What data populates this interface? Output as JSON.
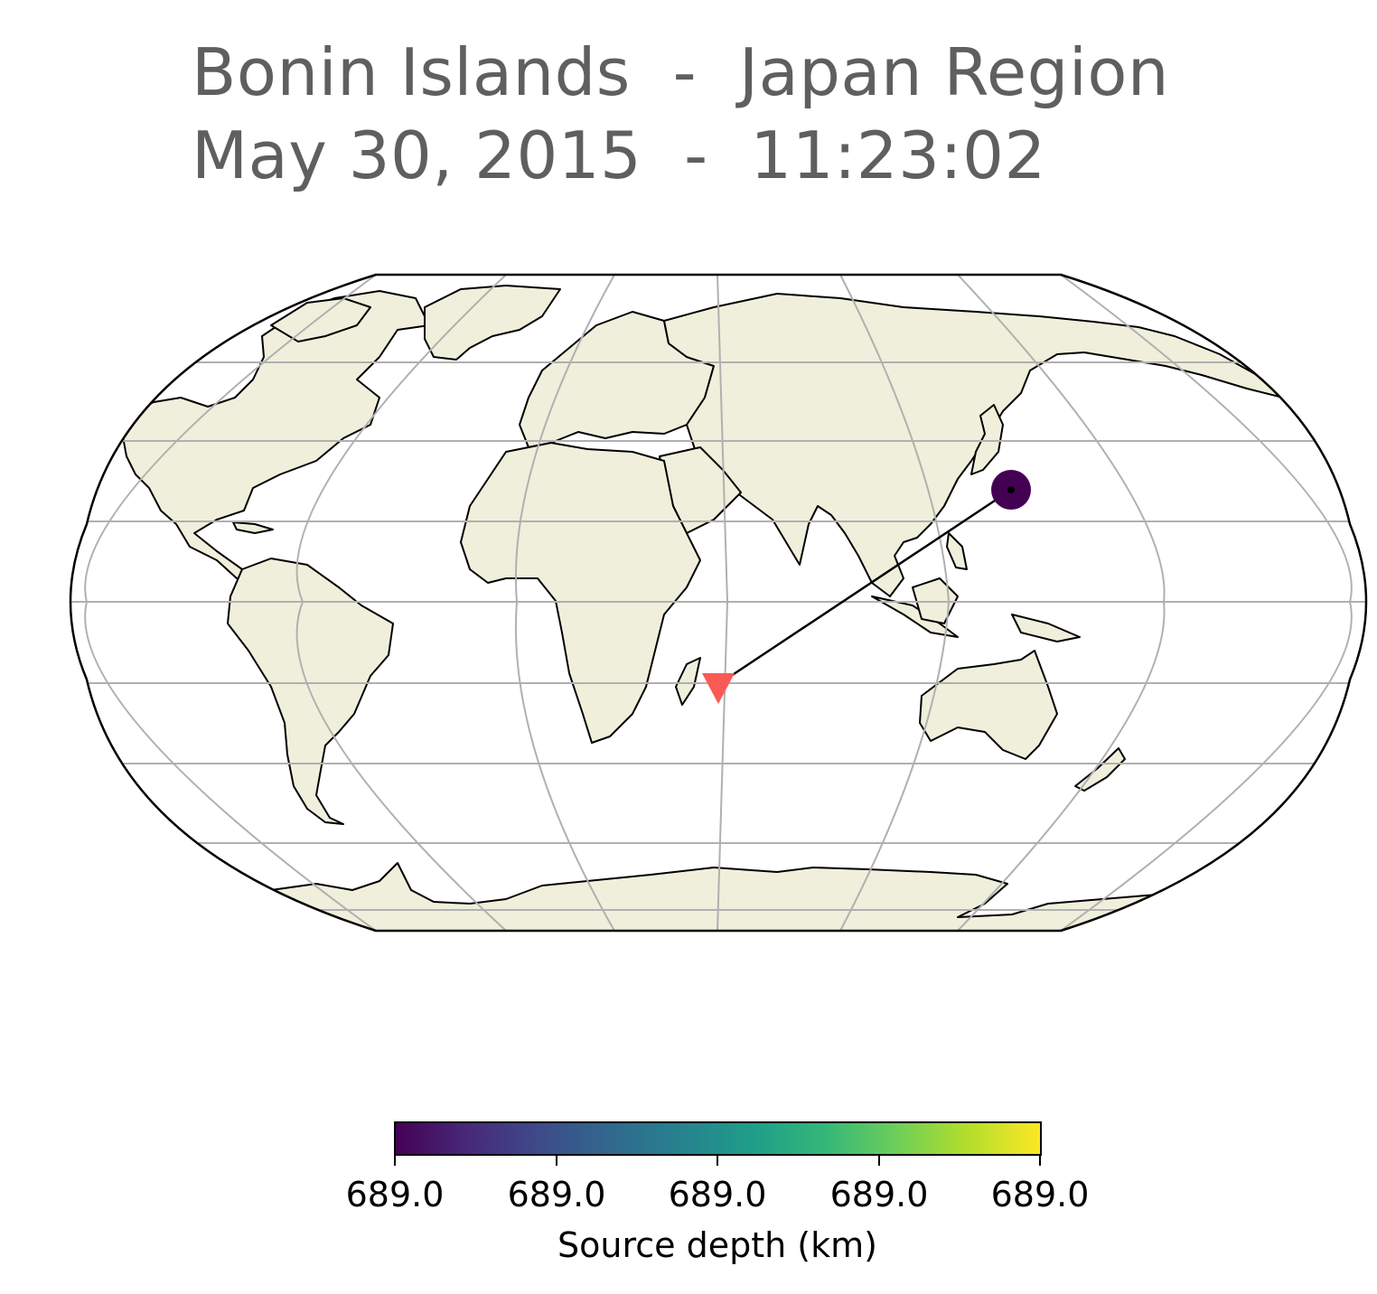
{
  "title": {
    "line1": "Bonin Islands  -  Japan Region",
    "line2": "May 30, 2015  -  11:23:02"
  },
  "map": {
    "projection": "Robinson",
    "land_color": "#efefdc",
    "ocean_color": "#ffffff",
    "coastline_color": "#000000",
    "gridline_color": "#b0b0b0",
    "event": {
      "name": "earthquake-epicenter",
      "depth_km": 689.0,
      "color": "#440154"
    },
    "station": {
      "name": "station-triangle",
      "color": "#f95a54"
    }
  },
  "colorbar": {
    "ticks": [
      "689.0",
      "689.0",
      "689.0",
      "689.0",
      "689.0"
    ],
    "label": "Source depth (km)",
    "colormap": [
      "#440154",
      "#482878",
      "#3e4a89",
      "#31688e",
      "#26828e",
      "#1f9e89",
      "#35b779",
      "#6ece58",
      "#b5de2b",
      "#fde725"
    ]
  }
}
